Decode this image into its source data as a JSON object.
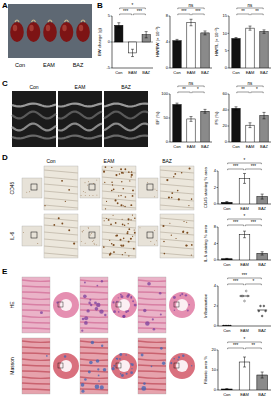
{
  "panel_labels": [
    "A",
    "B",
    "C",
    "D",
    "E"
  ],
  "panel_a": {
    "groups": [
      "Con",
      "EAM",
      "BAZ"
    ]
  },
  "panel_c": {
    "groups": [
      "Con",
      "EAM",
      "BAZ"
    ]
  },
  "panel_d": {
    "columns": [
      "Con",
      "EAM",
      "BAZ"
    ],
    "rows": [
      "CD45",
      "IL-6"
    ]
  },
  "panel_e": {
    "rows": [
      "HE",
      "Masson"
    ]
  },
  "chart_data": [
    {
      "type": "bar",
      "ylabel": "BW change (g)",
      "categories": [
        "Con",
        "EAM",
        "BAZ"
      ],
      "values": [
        3.2,
        -2.1,
        1.4
      ],
      "errors": [
        0.5,
        0.7,
        0.6
      ],
      "colors": [
        "#111111",
        "#ffffff",
        "#8a8a8a"
      ],
      "ylim": [
        -5,
        5
      ],
      "yticks": [
        -5,
        0,
        5
      ],
      "comparisons": [
        {
          "groups": [
            "Con",
            "EAM"
          ],
          "label": "***"
        },
        {
          "groups": [
            "EAM",
            "BAZ"
          ],
          "label": "***"
        },
        {
          "groups": [
            "Con",
            "BAZ"
          ],
          "label": "*"
        }
      ]
    },
    {
      "type": "bar",
      "ylabel": "HW/BW (× 10⁻³)",
      "categories": [
        "Con",
        "EAM",
        "BAZ"
      ],
      "values": [
        4.2,
        7.0,
        5.4
      ],
      "errors": [
        0.2,
        0.5,
        0.3
      ],
      "colors": [
        "#111111",
        "#ffffff",
        "#8a8a8a"
      ],
      "ylim": [
        0,
        8
      ],
      "yticks": [
        0,
        4,
        8
      ],
      "comparisons": [
        {
          "groups": [
            "Con",
            "EAM"
          ],
          "label": "***"
        },
        {
          "groups": [
            "EAM",
            "BAZ"
          ],
          "label": "***"
        },
        {
          "groups": [
            "Con",
            "BAZ"
          ],
          "label": "ns"
        }
      ]
    },
    {
      "type": "bar",
      "ylabel": "HW/TL (× 10⁻²)",
      "categories": [
        "Con",
        "EAM",
        "BAZ"
      ],
      "values": [
        8.5,
        11.5,
        10.5
      ],
      "errors": [
        0.3,
        0.6,
        0.5
      ],
      "colors": [
        "#111111",
        "#ffffff",
        "#8a8a8a"
      ],
      "ylim": [
        0,
        15
      ],
      "yticks": [
        0,
        5,
        10,
        15
      ],
      "comparisons": [
        {
          "groups": [
            "Con",
            "EAM"
          ],
          "label": "**"
        },
        {
          "groups": [
            "EAM",
            "BAZ"
          ],
          "label": "**"
        },
        {
          "groups": [
            "Con",
            "BAZ"
          ],
          "label": "ns"
        }
      ]
    },
    {
      "type": "bar",
      "ylabel": "EF (%)",
      "categories": [
        "Con",
        "EAM",
        "BAZ"
      ],
      "values": [
        78,
        48,
        64
      ],
      "errors": [
        3,
        5,
        4
      ],
      "colors": [
        "#111111",
        "#ffffff",
        "#8a8a8a"
      ],
      "ylim": [
        0,
        100
      ],
      "yticks": [
        0,
        50,
        100
      ],
      "comparisons": [
        {
          "groups": [
            "Con",
            "EAM"
          ],
          "label": "**"
        },
        {
          "groups": [
            "EAM",
            "BAZ"
          ],
          "label": "*"
        },
        {
          "groups": [
            "Con",
            "BAZ"
          ],
          "label": "ns"
        }
      ]
    },
    {
      "type": "bar",
      "ylabel": "FS (%)",
      "categories": [
        "Con",
        "EAM",
        "BAZ"
      ],
      "values": [
        42,
        21,
        33
      ],
      "errors": [
        2,
        3,
        4
      ],
      "colors": [
        "#111111",
        "#ffffff",
        "#8a8a8a"
      ],
      "ylim": [
        0,
        60
      ],
      "yticks": [
        0,
        20,
        40,
        60
      ],
      "comparisons": [
        {
          "groups": [
            "Con",
            "EAM"
          ],
          "label": "**"
        },
        {
          "groups": [
            "EAM",
            "BAZ"
          ],
          "label": "*"
        },
        {
          "groups": [
            "Con",
            "BAZ"
          ],
          "label": "ns"
        }
      ]
    },
    {
      "type": "bar",
      "ylabel": "CD45 staining % area",
      "categories": [
        "Con",
        "EAM",
        "BAZ"
      ],
      "values": [
        0.2,
        3.1,
        0.9
      ],
      "errors": [
        0.1,
        0.6,
        0.3
      ],
      "colors": [
        "#111111",
        "#ffffff",
        "#8a8a8a"
      ],
      "ylim": [
        0,
        4
      ],
      "yticks": [
        0,
        2,
        4
      ],
      "comparisons": [
        {
          "groups": [
            "Con",
            "EAM"
          ],
          "label": "***"
        },
        {
          "groups": [
            "EAM",
            "BAZ"
          ],
          "label": "***"
        },
        {
          "groups": [
            "Con",
            "BAZ"
          ],
          "label": "*"
        }
      ]
    },
    {
      "type": "bar",
      "ylabel": "IL-6 staining % area",
      "categories": [
        "Con",
        "EAM",
        "BAZ"
      ],
      "values": [
        0.3,
        6.2,
        1.6
      ],
      "errors": [
        0.1,
        0.8,
        0.4
      ],
      "colors": [
        "#111111",
        "#ffffff",
        "#8a8a8a"
      ],
      "ylim": [
        0,
        8
      ],
      "yticks": [
        0,
        4,
        8
      ],
      "comparisons": [
        {
          "groups": [
            "Con",
            "EAM"
          ],
          "label": "***"
        },
        {
          "groups": [
            "EAM",
            "BAZ"
          ],
          "label": "***"
        },
        {
          "groups": [
            "Con",
            "BAZ"
          ],
          "label": "*"
        }
      ]
    },
    {
      "type": "dot",
      "ylabel": "Inflammation",
      "categories": [
        "Con",
        "EAM",
        "BAZ"
      ],
      "values": [
        0,
        3,
        1.6
      ],
      "points": [
        [
          0,
          0,
          0,
          0,
          0
        ],
        [
          3,
          3,
          2.5,
          3.5,
          3
        ],
        [
          1.5,
          2,
          1,
          2,
          1.5
        ]
      ],
      "colors": [
        "#111111",
        "#ffffff",
        "#8a8a8a"
      ],
      "ylim": [
        0,
        4
      ],
      "yticks": [
        0,
        2,
        4
      ],
      "comparisons": [
        {
          "groups": [
            "Con",
            "EAM"
          ],
          "label": "***"
        },
        {
          "groups": [
            "EAM",
            "BAZ"
          ],
          "label": "*"
        },
        {
          "groups": [
            "Con",
            "BAZ"
          ],
          "label": "***"
        }
      ]
    },
    {
      "type": "bar",
      "ylabel": "Fibrotic area %",
      "categories": [
        "Con",
        "EAM",
        "BAZ"
      ],
      "values": [
        0.5,
        14,
        7.5
      ],
      "errors": [
        0.2,
        2.5,
        1.5
      ],
      "colors": [
        "#111111",
        "#ffffff",
        "#8a8a8a"
      ],
      "ylim": [
        0,
        20
      ],
      "yticks": [
        0,
        10,
        20
      ],
      "comparisons": [
        {
          "groups": [
            "Con",
            "EAM"
          ],
          "label": "***"
        },
        {
          "groups": [
            "EAM",
            "BAZ"
          ],
          "label": "**"
        },
        {
          "groups": [
            "Con",
            "BAZ"
          ],
          "label": "*"
        }
      ]
    }
  ]
}
